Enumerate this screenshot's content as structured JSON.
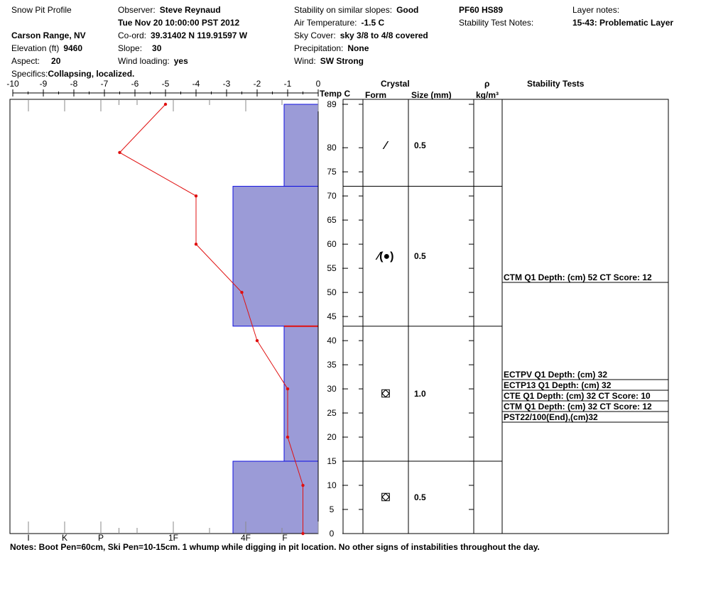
{
  "header": {
    "title": "Snow Pit Profile",
    "location": "Carson Range, NV",
    "elevation": {
      "label": "Elevation (ft)",
      "value": "9460"
    },
    "aspect": {
      "label": "Aspect:",
      "value": "20"
    },
    "specifics": {
      "label": "Specifics:",
      "value": "Collapsing, localized."
    },
    "observer": {
      "label": "Observer:",
      "value": "Steve Reynaud"
    },
    "datetime": "Tue Nov 20 10:00:00 PST 2012",
    "coord": {
      "label": "Co-ord:",
      "value": "39.31402 N 119.91597 W"
    },
    "slope": {
      "label": "Slope:",
      "value": "30"
    },
    "wind_loading": {
      "label": "Wind loading:",
      "value": "yes"
    },
    "stability": {
      "label": "Stability on similar slopes:",
      "value": "Good"
    },
    "air_temp": {
      "label": "Air Temperature:",
      "value": "-1.5 C"
    },
    "sky": {
      "label": "Sky Cover:",
      "value": "sky 3/8 to 4/8 covered"
    },
    "precip": {
      "label": "Precipitation:",
      "value": "None"
    },
    "wind": {
      "label": "Wind:",
      "value": "SW Strong"
    },
    "pf_hs": "PF60 HS89",
    "stab_notes_label": "Stability Test Notes:",
    "layer_notes_label": "Layer notes:",
    "layer_notes_value": "15-43: Problematic Layer"
  },
  "columns": {
    "temp": "Temp C",
    "crystal": "Crystal",
    "form": "Form",
    "size": "Size (mm)",
    "rho": "ρ",
    "rho_unit": "kg/m³",
    "stability_tests": "Stability Tests"
  },
  "notes": "Notes:  Boot Pen=60cm, Ski Pen=10-15cm.  1 whump while digging in pit location.  No other signs of instabilities throughout the day.",
  "colors": {
    "hardness_fill": "#9b9bd7",
    "hardness_edge": "#1010e0",
    "temp_line": "#e01010"
  },
  "chart_data": {
    "type": "line",
    "temperature_axis": {
      "range": [
        -10,
        0
      ],
      "ticks": [
        "-10",
        "-9",
        "-8",
        "-7",
        "-6",
        "-5",
        "-4",
        "-3",
        "-2",
        "-1",
        "0"
      ]
    },
    "depth_axis": {
      "range": [
        0,
        89
      ],
      "ticks": [
        "89",
        "80",
        "75",
        "70",
        "65",
        "60",
        "55",
        "50",
        "45",
        "40",
        "35",
        "30",
        "25",
        "20",
        "15",
        "10",
        "5",
        "0"
      ],
      "tick_values": [
        89,
        80,
        75,
        70,
        65,
        60,
        55,
        50,
        45,
        40,
        35,
        30,
        25,
        20,
        15,
        10,
        5,
        0
      ]
    },
    "hardness_scale": {
      "labels": [
        "I",
        "K",
        "P",
        "1F",
        "4F",
        "F"
      ],
      "values": [
        4.0,
        3.5,
        3.0,
        2.0,
        1.0,
        0.0
      ]
    },
    "temperature_profile": [
      {
        "depth": 89,
        "temp": -5.0
      },
      {
        "depth": 79,
        "temp": -6.5
      },
      {
        "depth": 70,
        "temp": -4.0
      },
      {
        "depth": 60,
        "temp": -4.0
      },
      {
        "depth": 50,
        "temp": -2.5
      },
      {
        "depth": 40,
        "temp": -2.0
      },
      {
        "depth": 30,
        "temp": -1.0
      },
      {
        "depth": 20,
        "temp": -1.0
      },
      {
        "depth": 10,
        "temp": -0.5
      },
      {
        "depth": 0,
        "temp": -0.5
      }
    ],
    "hardness_layers": [
      {
        "top": 89,
        "bottom": 72,
        "hardness": "F",
        "hardness_index": 0.0
      },
      {
        "top": 72,
        "bottom": 43,
        "hardness": "4F",
        "hardness_index": 1.0
      },
      {
        "top": 43,
        "bottom": 15,
        "hardness": "F",
        "hardness_index": 0.0
      },
      {
        "top": 15,
        "bottom": 0,
        "hardness": "4F",
        "hardness_index": 1.0
      }
    ],
    "layer_marker_depth": 43,
    "crystal_layers": [
      {
        "top": 89,
        "bottom": 72,
        "form": "⁄",
        "size": "0.5"
      },
      {
        "top": 72,
        "bottom": 43,
        "form": "⁄(●)",
        "size": "0.5"
      },
      {
        "top": 43,
        "bottom": 15,
        "form": "⛋",
        "size": "1.0"
      },
      {
        "top": 15,
        "bottom": 0,
        "form": "⛋",
        "size": "0.5"
      }
    ],
    "stability_tests": [
      {
        "text": "CTM Q1 Depth: (cm) 52 CT Score: 12",
        "depth": 52
      },
      {
        "text": "ECTPV Q1 Depth: (cm) 32",
        "depth": 32
      },
      {
        "text": "ECTP13 Q1 Depth: (cm) 32",
        "depth": 32
      },
      {
        "text": "CTE Q1 Depth: (cm) 32 CT Score: 10",
        "depth": 32
      },
      {
        "text": "CTM Q1 Depth: (cm) 32 CT Score: 12",
        "depth": 32
      },
      {
        "text": "PST22/100(End),(cm)32",
        "depth": 32
      }
    ]
  }
}
